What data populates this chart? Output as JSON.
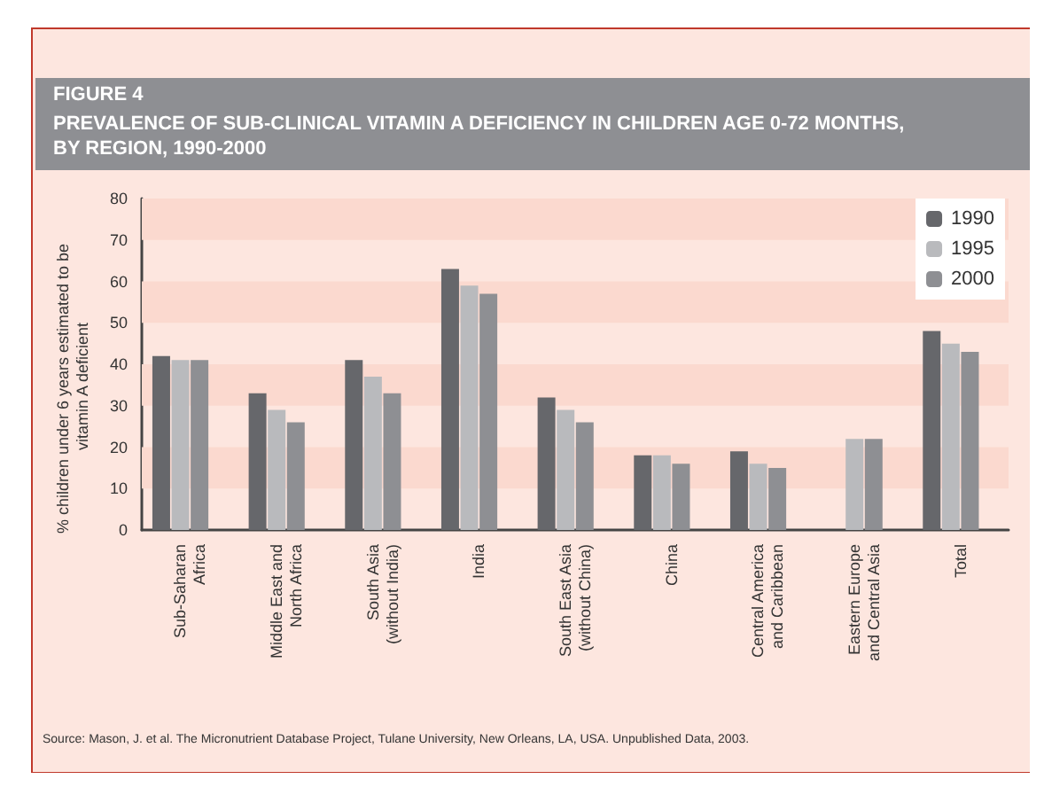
{
  "chart_data": {
    "type": "bar",
    "title": "FIGURE 4",
    "subtitle": "PREVALENCE OF SUB-CLINICAL VITAMIN A DEFICIENCY IN CHILDREN AGE 0-72 MONTHS,\nBY REGION, 1990-2000",
    "ylabel": "% children under 6 years estimated to be vitamin A deficient",
    "categories": [
      "Sub-Saharan\nAfrica",
      "Middle East and\nNorth Africa",
      "South Asia\n(without India)",
      "India",
      "South East Asia\n(without China)",
      "China",
      "Central America\nand Caribbean",
      "Eastern Europe\nand Central Asia",
      "Total"
    ],
    "series": [
      {
        "name": "1990",
        "color": "#66676b",
        "values": [
          42,
          33,
          41,
          63,
          32,
          18,
          19,
          null,
          48
        ]
      },
      {
        "name": "1995",
        "color": "#b9babd",
        "values": [
          41,
          29,
          37,
          59,
          29,
          18,
          16,
          22,
          45
        ]
      },
      {
        "name": "2000",
        "color": "#8e8f93",
        "values": [
          41,
          26,
          33,
          57,
          26,
          16,
          15,
          22,
          43
        ]
      }
    ],
    "ylim": [
      0,
      80
    ],
    "yticks": [
      0,
      10,
      20,
      30,
      40,
      50,
      60,
      70,
      80
    ],
    "legend": "top right",
    "bands": [
      {
        "axis": "y",
        "from": 10,
        "to": 20,
        "color": "#fbd9cf"
      },
      {
        "axis": "y",
        "from": 30,
        "to": 40,
        "color": "#fbd9cf"
      },
      {
        "axis": "y",
        "from": 50,
        "to": 60,
        "color": "#fbd9cf"
      },
      {
        "axis": "y",
        "from": 70,
        "to": 80,
        "color": "#fbd9cf"
      }
    ],
    "annotations": [
      "Source: Mason, J. et al. The Micronutrient Database Project, Tulane University, New Orleans, LA, USA. Unpublished Data, 2003."
    ]
  }
}
